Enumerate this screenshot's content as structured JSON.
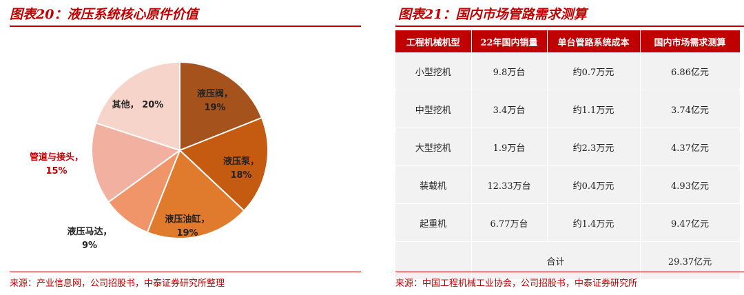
{
  "left": {
    "title": "图表20：液压系统核心原件价值",
    "source": "来源：产业信息网，公司招股书，中泰证券研究所整理"
  },
  "right": {
    "title": "图表21：国内市场管路需求测算",
    "source": "来源：中国工程机械工业协会，公司招股书，中泰证券研究所"
  },
  "colors": {
    "accent": "#c00000",
    "slices": [
      "#a5521c",
      "#c55a11",
      "#e07a2d",
      "#f0956a",
      "#f2b1a0",
      "#f6d4c9"
    ]
  },
  "chart_data": [
    {
      "type": "pie",
      "categories": [
        "液压阀，",
        "液压泵，",
        "液压油缸，",
        "液压马达，",
        "管道与接头，",
        "其他，"
      ],
      "values": [
        19,
        18,
        19,
        9,
        15,
        20
      ],
      "value_labels": [
        "19%",
        "18%",
        "19%",
        "9%",
        "15%",
        "20%"
      ],
      "label_colors": [
        "#222222",
        "#222222",
        "#222222",
        "#222222",
        "#c00000",
        "#222222"
      ]
    },
    {
      "type": "table",
      "columns": [
        "工程机械机型",
        "22年国内销量",
        "单台管路系统成本",
        "国内市场需求测算"
      ],
      "rows": [
        [
          "小型挖机",
          "9.8万台",
          "约0.7万元",
          "6.86亿元"
        ],
        [
          "中型挖机",
          "3.4万台",
          "约1.1万元",
          "3.74亿元"
        ],
        [
          "大型挖机",
          "1.9万台",
          "约2.3万元",
          "4.37亿元"
        ],
        [
          "装载机",
          "12.33万台",
          "约0.4万元",
          "4.93亿元"
        ],
        [
          "起重机",
          "6.77万台",
          "约1.4万元",
          "9.47亿元"
        ]
      ],
      "total_label": "合计",
      "total_value": "29.37亿元"
    }
  ]
}
